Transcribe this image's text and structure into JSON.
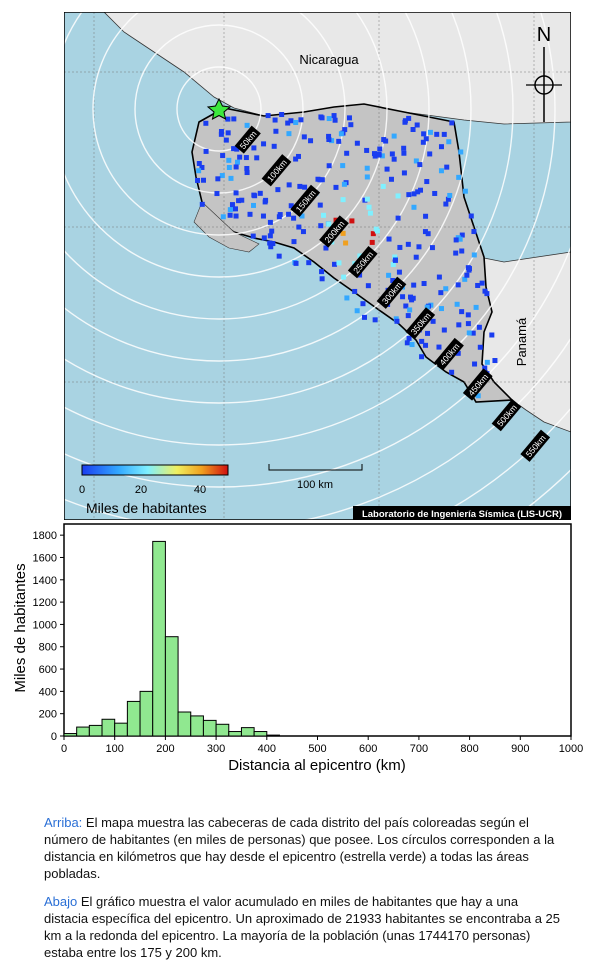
{
  "map": {
    "labels": {
      "country_north": "Nicaragua",
      "country_south": "Panamá",
      "north_arrow": "N",
      "scale_label": "100 km",
      "credit": "Laboratorio de Ingeniería Sísmica (LIS-UCR)"
    },
    "ring_labels": [
      "50km",
      "100km",
      "150km",
      "200km",
      "250km",
      "300km",
      "350km",
      "400km",
      "450km",
      "500km",
      "550km"
    ],
    "colorbar": {
      "title": "Miles de habitantes",
      "ticks": [
        "0",
        "20",
        "40"
      ],
      "colors": [
        "#1a3df0",
        "#33a8ff",
        "#7ff0ff",
        "#f0f060",
        "#f0a020",
        "#d01010"
      ]
    },
    "colors": {
      "sea": "#a9d3e2",
      "land_cr": "#c4c4c4",
      "land_other": "#e8e8e8",
      "epicenter": "#3de83d"
    }
  },
  "chart_data": {
    "type": "bar",
    "xlabel": "Distancia al epicentro (km)",
    "ylabel": "Miles de habitantes",
    "xlim": [
      0,
      1000
    ],
    "ylim": [
      0,
      1900
    ],
    "xticks": [
      "0",
      "100",
      "200",
      "300",
      "400",
      "500",
      "600",
      "700",
      "800",
      "900",
      "1000"
    ],
    "yticks": [
      "0",
      "200",
      "400",
      "600",
      "800",
      "1000",
      "1200",
      "1400",
      "1600",
      "1800"
    ],
    "bin_width": 25,
    "bins_start": [
      0,
      25,
      50,
      75,
      100,
      125,
      150,
      175,
      200,
      225,
      250,
      275,
      300,
      325,
      350,
      375,
      400
    ],
    "values": [
      22,
      80,
      95,
      150,
      115,
      310,
      400,
      1744,
      890,
      215,
      180,
      140,
      105,
      40,
      75,
      40,
      8
    ],
    "bar_color": "#90e890"
  },
  "captions": {
    "top_lead": "Arriba:",
    "top_text": " El mapa muestra las cabeceras de cada distrito del país coloreadas según el número de habitantes (en miles de personas) que posee.  Los círculos corresponden a la distancia en kilómetros que hay desde el epicentro (estrella verde) a todas las áreas pobladas.",
    "bottom_lead": "Abajo",
    "bottom_text": " El gráfico muestra el valor acumulado en miles de habitantes que hay a una distacia específica del epicentro.  Un aproximado de 21933 habitantes se encontraba a 25 km a la redonda del epicentro.  La mayoría de la población (unas 1744170 personas) estaba entre los 175 y 200 km."
  }
}
